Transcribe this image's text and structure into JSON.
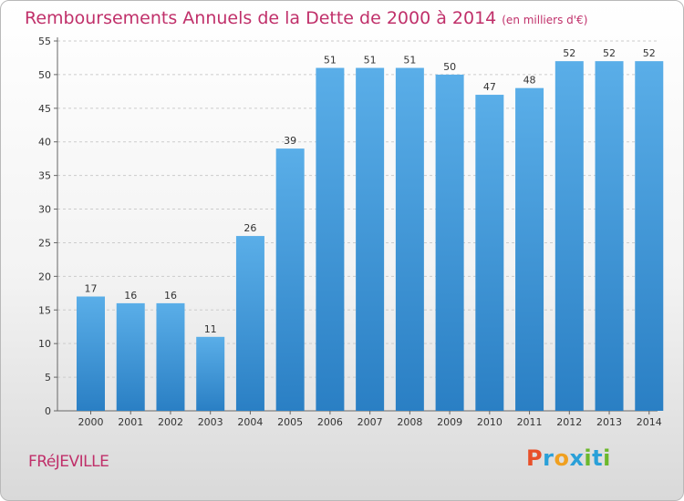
{
  "header": {
    "title": "Remboursements Annuels de la Dette de 2000 à 2014",
    "unit": "(en milliers d'€)"
  },
  "footer": {
    "commune": "FRéJEVILLE",
    "logo_letters": [
      "P",
      "r",
      "o",
      "x",
      "i",
      "t",
      "i"
    ],
    "logo_colors": [
      "#e8502a",
      "#2aa0d8",
      "#f0a020",
      "#2aa0d8",
      "#6cb82c",
      "#2aa0d8",
      "#6cb82c"
    ]
  },
  "chart_data": {
    "type": "bar",
    "categories": [
      "2000",
      "2001",
      "2002",
      "2003",
      "2004",
      "2005",
      "2006",
      "2007",
      "2008",
      "2009",
      "2010",
      "2011",
      "2012",
      "2013",
      "2014"
    ],
    "values": [
      17,
      16,
      16,
      11,
      26,
      39,
      51,
      51,
      51,
      50,
      47,
      48,
      52,
      52,
      52
    ],
    "title": "Remboursements Annuels de la Dette de 2000 à 2014",
    "ylim": [
      0,
      55
    ],
    "yticks": [
      0,
      5,
      10,
      15,
      20,
      25,
      30,
      35,
      40,
      45,
      50,
      55
    ],
    "grid": true,
    "bar_color_top": "#5aaee8",
    "bar_color_bottom": "#2a7fc4"
  }
}
